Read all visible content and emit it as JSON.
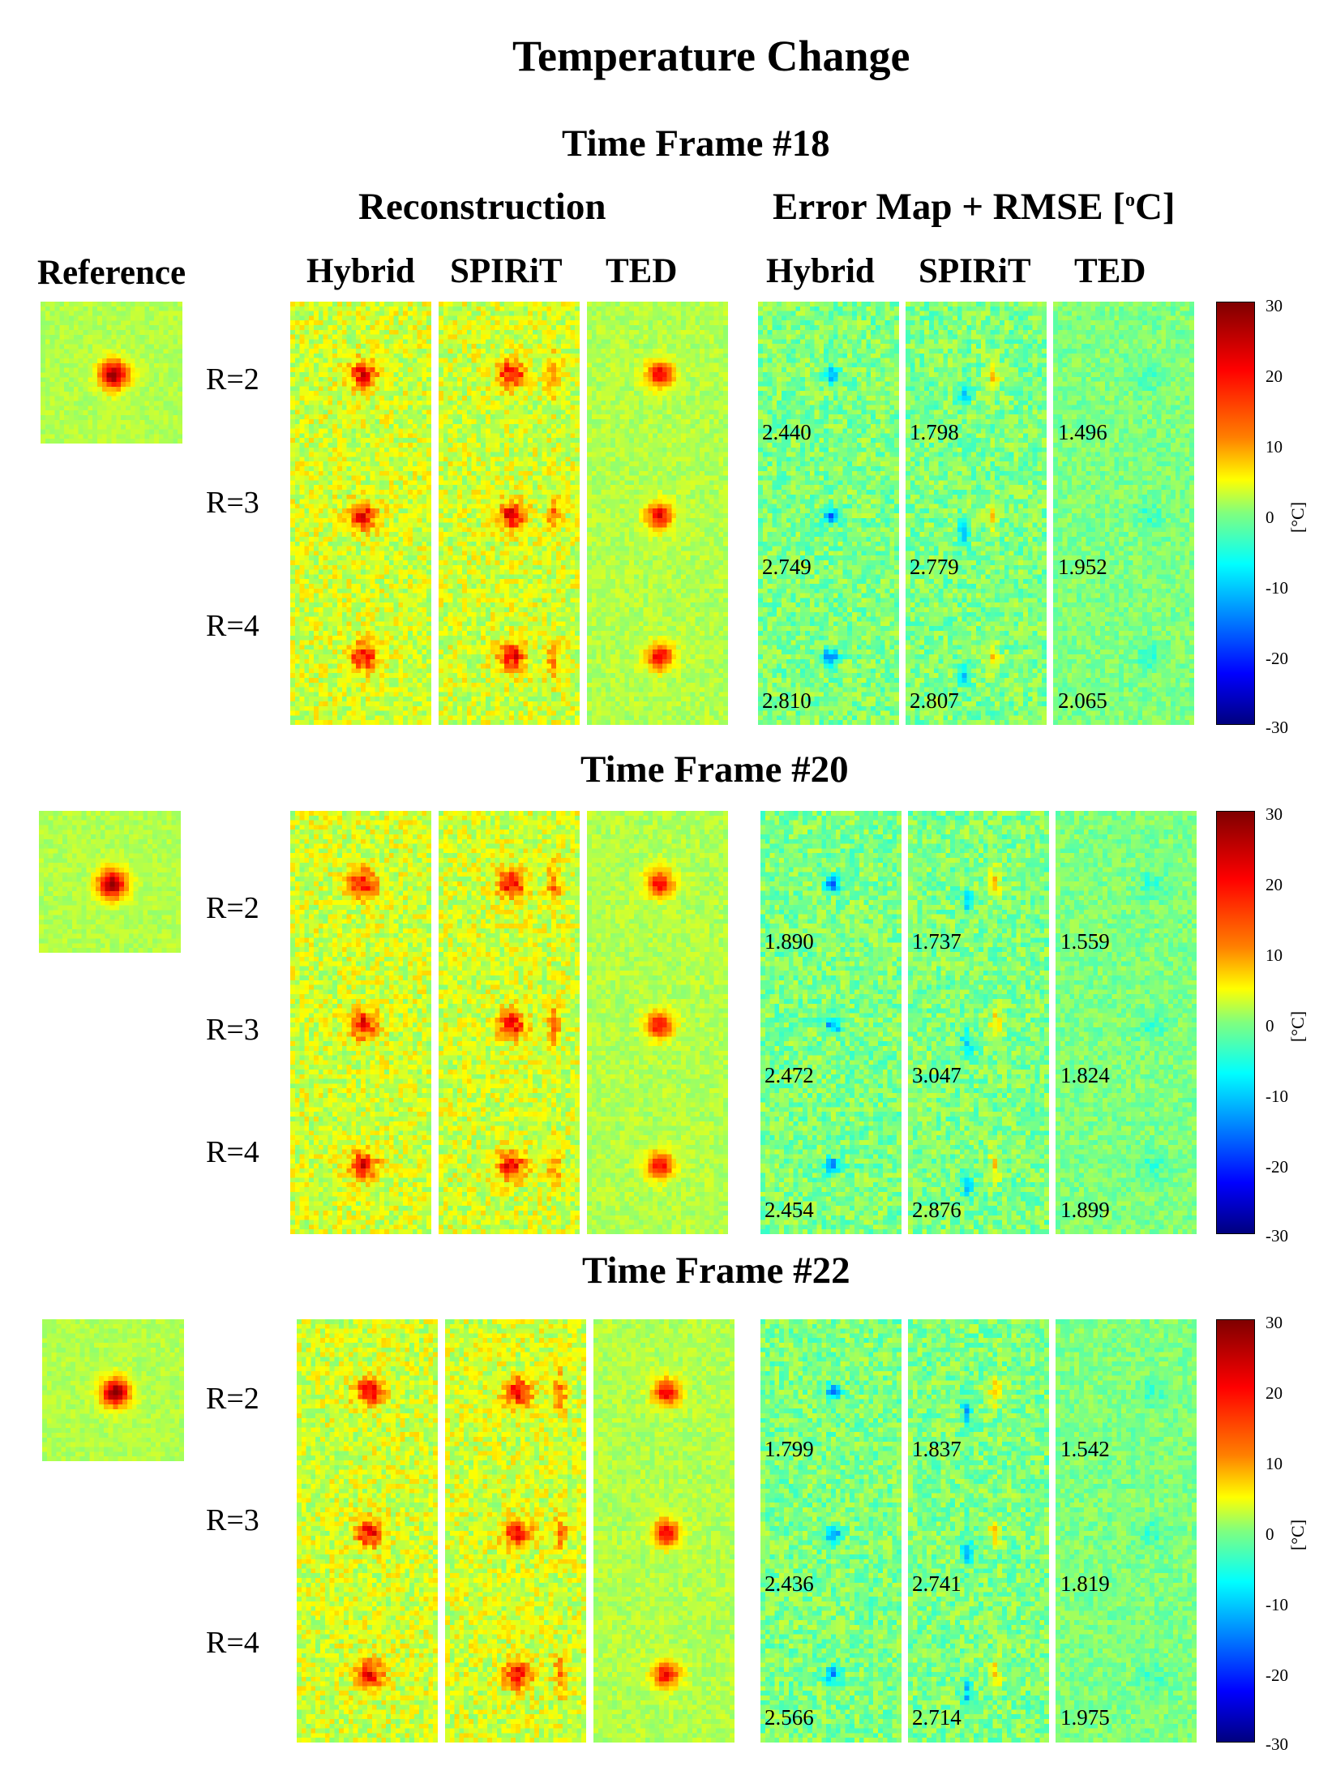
{
  "title": "Temperature Change",
  "headers": {
    "reference": "Reference",
    "reconstruction": "Reconstruction",
    "error_map": "Error Map + RMSE [",
    "error_map_sup": "o",
    "error_map_tail": "C]",
    "methods": [
      "Hybrid",
      "SPIRiT",
      "TED"
    ]
  },
  "row_labels": [
    "R=2",
    "R=3",
    "R=4"
  ],
  "colorbar": {
    "ticks": [
      "30",
      "20",
      "10",
      "0",
      "-10",
      "-20",
      "-30"
    ],
    "unit": "[°C]",
    "range": [
      -30,
      30
    ],
    "colormap": "jet"
  },
  "frames": [
    {
      "label": "Time Frame #18",
      "rmse": [
        [
          "2.440",
          "1.798",
          "1.496"
        ],
        [
          "2.749",
          "2.779",
          "1.952"
        ],
        [
          "2.810",
          "2.807",
          "2.065"
        ]
      ]
    },
    {
      "label": "Time Frame #20",
      "rmse": [
        [
          "1.890",
          "1.737",
          "1.559"
        ],
        [
          "2.472",
          "3.047",
          "1.824"
        ],
        [
          "2.454",
          "2.876",
          "1.899"
        ]
      ]
    },
    {
      "label": "Time Frame #22",
      "rmse": [
        [
          "1.799",
          "1.837",
          "1.542"
        ],
        [
          "2.436",
          "2.741",
          "1.819"
        ],
        [
          "2.566",
          "2.714",
          "1.975"
        ]
      ]
    }
  ]
}
